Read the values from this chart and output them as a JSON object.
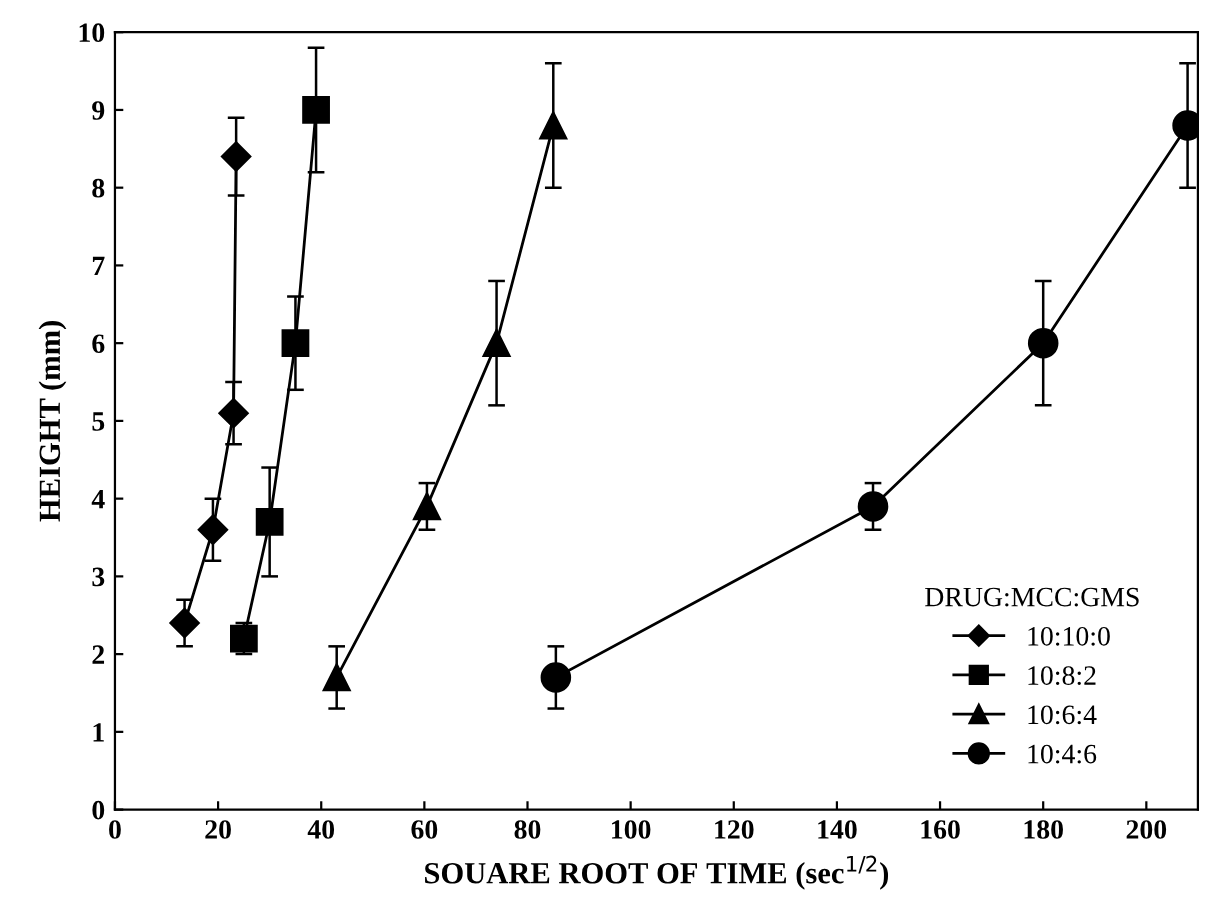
{
  "chart_data": {
    "type": "line",
    "xlabel": "SOUARE ROOT OF TIME (sec$^{1/2}$)",
    "ylabel": "HEIGHT (mm)",
    "legend_title": "DRUG:MCC:GMS",
    "xlim": [
      0,
      210
    ],
    "xticks": [
      0,
      20,
      40,
      60,
      80,
      100,
      120,
      140,
      160,
      180,
      200
    ],
    "ylim": [
      0,
      10
    ],
    "yticks": [
      0,
      1,
      2,
      3,
      4,
      5,
      6,
      7,
      8,
      9,
      10
    ],
    "grid": false,
    "legend": "bottom right",
    "series": [
      {
        "name": "10:10:0",
        "color": "#000000",
        "marker": "diamond",
        "x": [
          13.5,
          19,
          23,
          23.5
        ],
        "values": [
          2.4,
          3.6,
          5.1,
          8.4
        ],
        "errors": [
          0.3,
          0.4,
          0.4,
          0.5
        ]
      },
      {
        "name": "10:8:2",
        "color": "#000000",
        "marker": "square",
        "x": [
          25,
          30,
          35,
          39
        ],
        "values": [
          2.2,
          3.7,
          6.0,
          9.0
        ],
        "errors": [
          0.2,
          0.7,
          0.6,
          0.8
        ]
      },
      {
        "name": "10:6:4",
        "color": "#000000",
        "marker": "triangle",
        "x": [
          43,
          60.5,
          74,
          85
        ],
        "values": [
          1.7,
          3.9,
          6.0,
          8.8
        ],
        "errors": [
          0.4,
          0.3,
          0.8,
          0.8
        ]
      },
      {
        "name": "10:4:6",
        "color": "#000000",
        "marker": "circle",
        "x": [
          85.5,
          147,
          180,
          208
        ],
        "values": [
          1.7,
          3.9,
          6.0,
          8.8
        ],
        "errors": [
          0.4,
          0.3,
          0.8,
          0.8
        ]
      }
    ]
  }
}
